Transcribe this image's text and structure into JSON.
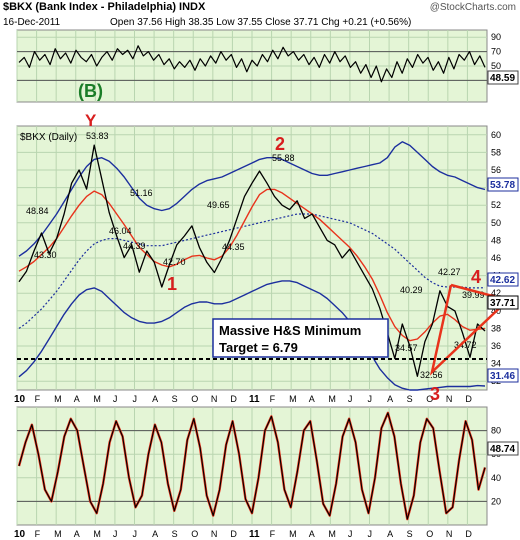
{
  "header": {
    "symbol_title": "$BKX (Bank Index - Philadelphia) INDX",
    "watermark": "@StockCharts.com",
    "date": "16-Dec-2011",
    "quote": "Open 37.56  High 38.35  Low 37.55  Close 37.71  Chg +0.21 (+0.56%)"
  },
  "colors": {
    "panel_bg": "#e4f5d6",
    "grid": "#b9d5b0",
    "price": "#000000",
    "ma": "#e8331c",
    "band": "#1c2f9e",
    "annot_red": "#d81e1e",
    "annot_green": "#1b7d28",
    "label_box": "#1c2f9e"
  },
  "chart_data": [
    {
      "type": "line",
      "panel": "top",
      "ylim": [
        0,
        100
      ],
      "ticks": [
        90,
        70,
        50,
        30
      ],
      "last_value_label": "48.59",
      "values": [
        55,
        62,
        48,
        70,
        58,
        66,
        52,
        74,
        60,
        68,
        54,
        72,
        62,
        56,
        66,
        50,
        62,
        70,
        58,
        74,
        66,
        72,
        60,
        78,
        64,
        70,
        58,
        66,
        52,
        60,
        46,
        56,
        48,
        58,
        44,
        60,
        50,
        64,
        54,
        70,
        58,
        66,
        48,
        60,
        42,
        58,
        50,
        66,
        56,
        72,
        60,
        76,
        64,
        70,
        58,
        66,
        52,
        62,
        48,
        66,
        54,
        70,
        56,
        64,
        48,
        56,
        40,
        52,
        34,
        50,
        28,
        46,
        34,
        56,
        40,
        60,
        48,
        66,
        54,
        62,
        44,
        56,
        40,
        62,
        46,
        66,
        58,
        70,
        52,
        64,
        48
      ]
    },
    {
      "type": "line",
      "panel": "main",
      "title": "$BKX (Daily)",
      "ylim": [
        31,
        61
      ],
      "ticks": [
        60,
        58,
        56,
        54,
        52,
        50,
        48,
        46,
        44,
        42,
        40,
        38,
        36,
        34,
        32
      ],
      "x_ticks": [
        "10",
        "F",
        "M",
        "A",
        "M",
        "J",
        "J",
        "A",
        "S",
        "O",
        "N",
        "D",
        "11",
        "F",
        "M",
        "A",
        "M",
        "J",
        "J",
        "A",
        "S",
        "O",
        "N",
        "D"
      ],
      "series": [
        {
          "values": [
            43.3,
            44.5,
            46.8,
            48.84,
            46.5,
            48.2,
            51.0,
            54.5,
            56.0,
            53.83,
            58.83,
            55.0,
            51.16,
            48.5,
            46.04,
            47.5,
            44.39,
            46.8,
            45.5,
            42.7,
            45.2,
            47.5,
            48.5,
            49.65,
            47.2,
            45.5,
            44.35,
            46.0,
            48.0,
            50.5,
            53.0,
            54.5,
            55.88,
            54.5,
            53.0,
            52.0,
            51.5,
            52.5,
            50.5,
            51.0,
            49.5,
            48.0,
            47.5,
            46.0,
            47.0,
            45.5,
            44.0,
            42.5,
            40.29,
            37.5,
            34.57,
            38.5,
            36.0,
            32.56,
            36.5,
            38.5,
            42.27,
            40.5,
            39.99,
            37.5,
            34.72,
            38.5,
            37.71
          ]
        },
        {
          "values": [
            44.5,
            45.0,
            45.6,
            46.4,
            47.2,
            48.2,
            49.5,
            50.8,
            52.0,
            53.0,
            53.6,
            53.2,
            52.2,
            51.0,
            49.8,
            48.5,
            47.2,
            46.4,
            45.6,
            45.2,
            45.0,
            45.3,
            45.8,
            46.2,
            46.3,
            46.0,
            45.8,
            46.2,
            47.2,
            48.6,
            50.2,
            51.8,
            53.2,
            53.8,
            53.8,
            53.4,
            52.8,
            52.2,
            51.6,
            51.0,
            50.4,
            49.6,
            48.8,
            48.0,
            47.2,
            46.2,
            45.0,
            43.6,
            41.8,
            39.8,
            38.2,
            37.2,
            36.6,
            36.8,
            37.6,
            38.6,
            39.4,
            39.6,
            39.0,
            38.2,
            37.8,
            37.9,
            38.0
          ]
        },
        {
          "values": [
            46.2,
            46.8,
            47.6,
            48.6,
            49.8,
            51.0,
            52.4,
            53.8,
            55.2,
            56.4,
            57.2,
            57.4,
            57.0,
            56.2,
            55.2,
            54.0,
            52.8,
            52.0,
            51.6,
            51.4,
            51.6,
            52.2,
            53.0,
            53.8,
            54.4,
            54.8,
            55.0,
            55.2,
            55.6,
            56.0,
            56.4,
            56.8,
            57.2,
            57.4,
            57.4,
            57.2,
            56.8,
            56.4,
            56.0,
            55.6,
            55.4,
            55.4,
            55.6,
            55.8,
            56.0,
            56.2,
            56.4,
            56.6,
            56.8,
            57.4,
            58.6,
            59.2,
            58.8,
            58.0,
            57.2,
            56.4,
            55.8,
            55.4,
            55.2,
            54.8,
            54.4,
            54.0,
            53.78
          ]
        },
        {
          "values": [
            32.5,
            33.2,
            34.2,
            35.4,
            36.8,
            38.2,
            39.6,
            40.8,
            41.8,
            42.4,
            42.6,
            42.2,
            41.4,
            40.6,
            39.8,
            39.2,
            38.8,
            38.6,
            38.6,
            38.8,
            39.2,
            39.8,
            40.4,
            40.8,
            41.0,
            41.0,
            40.8,
            40.8,
            41.0,
            41.4,
            41.8,
            42.2,
            42.6,
            43.0,
            43.2,
            43.4,
            43.4,
            43.2,
            42.8,
            42.4,
            42.0,
            41.4,
            40.6,
            39.8,
            38.8,
            37.6,
            36.2,
            34.8,
            33.4,
            32.4,
            31.6,
            31.2,
            31.0,
            31.0,
            31.1,
            31.2,
            31.3,
            31.4,
            31.4,
            31.4,
            31.4,
            31.5,
            31.46
          ]
        },
        {
          "values": [
            38.0,
            38.6,
            39.4,
            40.2,
            41.2,
            42.2,
            43.4,
            44.6,
            45.8,
            46.8,
            47.6,
            48.0,
            48.2,
            48.2,
            48.0,
            47.8,
            47.6,
            47.4,
            47.4,
            47.4,
            47.6,
            47.8,
            48.0,
            48.2,
            48.4,
            48.6,
            48.8,
            49.0,
            49.2,
            49.4,
            49.6,
            49.8,
            50.0,
            50.2,
            50.4,
            50.6,
            50.8,
            51.0,
            51.0,
            51.0,
            50.8,
            50.6,
            50.4,
            50.2,
            50.0,
            49.6,
            49.2,
            48.8,
            48.2,
            47.6,
            47.0,
            46.2,
            45.4,
            44.6,
            43.8,
            43.2,
            42.8,
            42.7,
            42.7,
            42.7,
            42.6,
            42.6,
            42.62
          ]
        }
      ],
      "right_labels": [
        "53.78",
        "42.62",
        "37.71",
        "31.46"
      ],
      "price_labels": [
        "43.30",
        "48.84",
        "53.83",
        "51.16",
        "46.04",
        "44.39",
        "42.70",
        "49.65",
        "44.35",
        "55.88",
        "40.29",
        "42.27",
        "39.99",
        "34.57",
        "32.56",
        "34.72"
      ],
      "annotations": {
        "y": "Y",
        "b": "(B)",
        "w1": "1",
        "w2": "2",
        "w3": "3",
        "w4": "4",
        "box_line1": "Massive H&S Minimum",
        "box_line2": "Target = 6.79"
      }
    },
    {
      "type": "line",
      "panel": "bottom",
      "ylim": [
        0,
        100
      ],
      "ticks": [
        80,
        60,
        40,
        20
      ],
      "last_value_label": "48.74",
      "x_ticks": [
        "10",
        "F",
        "M",
        "A",
        "M",
        "J",
        "J",
        "A",
        "S",
        "O",
        "N",
        "D",
        "11",
        "F",
        "M",
        "A",
        "M",
        "J",
        "J",
        "A",
        "S",
        "O",
        "N",
        "D"
      ],
      "values": [
        50,
        70,
        85,
        60,
        30,
        20,
        45,
        75,
        90,
        80,
        50,
        20,
        10,
        35,
        70,
        88,
        75,
        40,
        15,
        25,
        60,
        85,
        70,
        35,
        12,
        30,
        72,
        90,
        65,
        25,
        8,
        30,
        68,
        88,
        60,
        22,
        10,
        40,
        80,
        92,
        70,
        30,
        15,
        45,
        80,
        88,
        55,
        18,
        8,
        35,
        75,
        90,
        70,
        30,
        10,
        40,
        82,
        95,
        75,
        35,
        5,
        25,
        70,
        90,
        82,
        45,
        10,
        15,
        55,
        88,
        72,
        30,
        48.74
      ]
    }
  ]
}
